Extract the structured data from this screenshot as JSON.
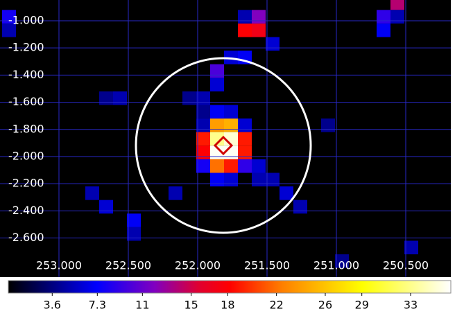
{
  "chart_data": {
    "type": "heatmap",
    "xlim": [
      253.425,
      250.175
    ],
    "ylim": [
      -0.847,
      -2.888
    ],
    "xticks": [
      {
        "value": 253.0,
        "label": "253.000"
      },
      {
        "value": 252.5,
        "label": "252.500"
      },
      {
        "value": 252.0,
        "label": "252.000"
      },
      {
        "value": 251.5,
        "label": "251.500"
      },
      {
        "value": 251.0,
        "label": "251.000"
      },
      {
        "value": 250.5,
        "label": "250.500"
      }
    ],
    "yticks": [
      {
        "value": -1.0,
        "label": "-1.000"
      },
      {
        "value": -1.2,
        "label": "-1.200"
      },
      {
        "value": -1.4,
        "label": "-1.400"
      },
      {
        "value": -1.6,
        "label": "-1.600"
      },
      {
        "value": -1.8,
        "label": "-1.800"
      },
      {
        "value": -2.0,
        "label": "-2.000"
      },
      {
        "value": -2.2,
        "label": "-2.200"
      },
      {
        "value": -2.4,
        "label": "-2.400"
      },
      {
        "value": -2.6,
        "label": "-2.600"
      }
    ],
    "grid": true,
    "clim": [
      0,
      36.3
    ],
    "cticks": [
      3.6,
      7.3,
      11,
      15,
      18,
      22,
      26,
      29,
      33
    ],
    "cells": [
      [
        251.86,
        -1.77,
        24
      ],
      [
        251.76,
        -1.77,
        25
      ],
      [
        251.96,
        -1.77,
        5
      ],
      [
        251.66,
        -1.77,
        6
      ],
      [
        251.96,
        -1.87,
        19
      ],
      [
        251.86,
        -1.87,
        33
      ],
      [
        251.76,
        -1.87,
        35
      ],
      [
        251.66,
        -1.87,
        19
      ],
      [
        251.96,
        -1.97,
        18
      ],
      [
        251.86,
        -1.97,
        36
      ],
      [
        251.76,
        -1.97,
        36
      ],
      [
        251.66,
        -1.97,
        19
      ],
      [
        251.96,
        -2.07,
        8
      ],
      [
        251.86,
        -2.07,
        22
      ],
      [
        251.76,
        -2.07,
        19
      ],
      [
        251.66,
        -2.07,
        9
      ],
      [
        251.86,
        -2.17,
        7
      ],
      [
        251.76,
        -2.17,
        6
      ],
      [
        251.56,
        -2.17,
        5
      ],
      [
        251.56,
        -2.07,
        6
      ],
      [
        251.86,
        -1.67,
        7
      ],
      [
        251.76,
        -1.67,
        6
      ],
      [
        251.96,
        -1.67,
        4
      ],
      [
        251.96,
        -1.57,
        5
      ],
      [
        251.86,
        -1.47,
        6
      ],
      [
        251.86,
        -1.37,
        10
      ],
      [
        251.76,
        -1.27,
        6
      ],
      [
        251.66,
        -1.27,
        7
      ],
      [
        251.66,
        -1.07,
        18
      ],
      [
        251.56,
        -1.07,
        17
      ],
      [
        251.56,
        -0.97,
        12
      ],
      [
        251.66,
        -0.97,
        5
      ],
      [
        251.46,
        -1.17,
        6
      ],
      [
        250.56,
        -0.87,
        14
      ],
      [
        250.66,
        -0.97,
        9
      ],
      [
        250.66,
        -1.07,
        7
      ],
      [
        250.56,
        -0.97,
        5
      ],
      [
        253.36,
        -0.97,
        8
      ],
      [
        253.36,
        -1.07,
        5
      ],
      [
        252.46,
        -2.47,
        7
      ],
      [
        252.46,
        -2.57,
        5
      ],
      [
        252.66,
        -2.37,
        6
      ],
      [
        252.76,
        -2.27,
        5
      ],
      [
        252.56,
        -1.57,
        5
      ],
      [
        252.66,
        -1.57,
        4
      ],
      [
        251.36,
        -2.27,
        6
      ],
      [
        251.26,
        -2.37,
        5
      ],
      [
        251.46,
        -2.17,
        5
      ],
      [
        250.46,
        -2.67,
        5
      ],
      [
        250.96,
        -2.77,
        4
      ],
      [
        251.06,
        -1.77,
        4
      ],
      [
        252.06,
        -1.57,
        4
      ],
      [
        252.16,
        -2.27,
        5
      ]
    ]
  }
}
